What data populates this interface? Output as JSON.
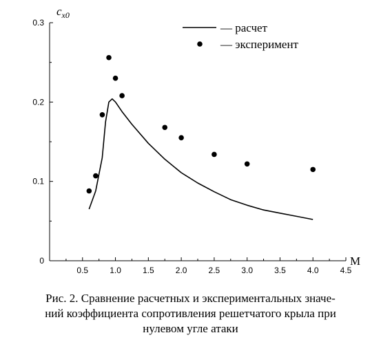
{
  "chart_data": {
    "type": "line+scatter",
    "ylabel_main": "c",
    "ylabel_sub": "x0",
    "xlabel": "M",
    "xlim": [
      0,
      4.5
    ],
    "ylim": [
      0,
      0.3
    ],
    "x_ticks": [
      "0.5",
      "1.0",
      "1.5",
      "2.0",
      "2.5",
      "3.0",
      "3.5",
      "4.0",
      "4.5"
    ],
    "y_ticks": [
      "0",
      "0.1",
      "0.2",
      "0.3"
    ],
    "grid": false,
    "legend_position": "top-right",
    "series": [
      {
        "name": "— расчет",
        "kind": "line",
        "x": [
          0.6,
          0.7,
          0.8,
          0.85,
          0.9,
          0.95,
          1.0,
          1.1,
          1.25,
          1.5,
          1.75,
          2.0,
          2.25,
          2.5,
          2.75,
          3.0,
          3.25,
          3.5,
          3.75,
          4.0
        ],
        "y": [
          0.065,
          0.088,
          0.13,
          0.175,
          0.2,
          0.204,
          0.2,
          0.188,
          0.172,
          0.148,
          0.128,
          0.111,
          0.098,
          0.087,
          0.077,
          0.07,
          0.064,
          0.06,
          0.056,
          0.052
        ]
      },
      {
        "name": "— эксперимент",
        "kind": "scatter",
        "x": [
          0.6,
          0.7,
          0.8,
          0.9,
          1.0,
          1.1,
          1.75,
          2.0,
          2.5,
          3.0,
          4.0
        ],
        "y": [
          0.088,
          0.107,
          0.184,
          0.256,
          0.23,
          0.208,
          0.168,
          0.155,
          0.134,
          0.122,
          0.115
        ]
      }
    ]
  },
  "caption": {
    "line1": "Рис. 2. Сравнение расчетных и экспериментальных значе-",
    "line2": "ний коэффициента сопротивления решетчатого крыла при",
    "line3": "нулевом угле атаки"
  }
}
